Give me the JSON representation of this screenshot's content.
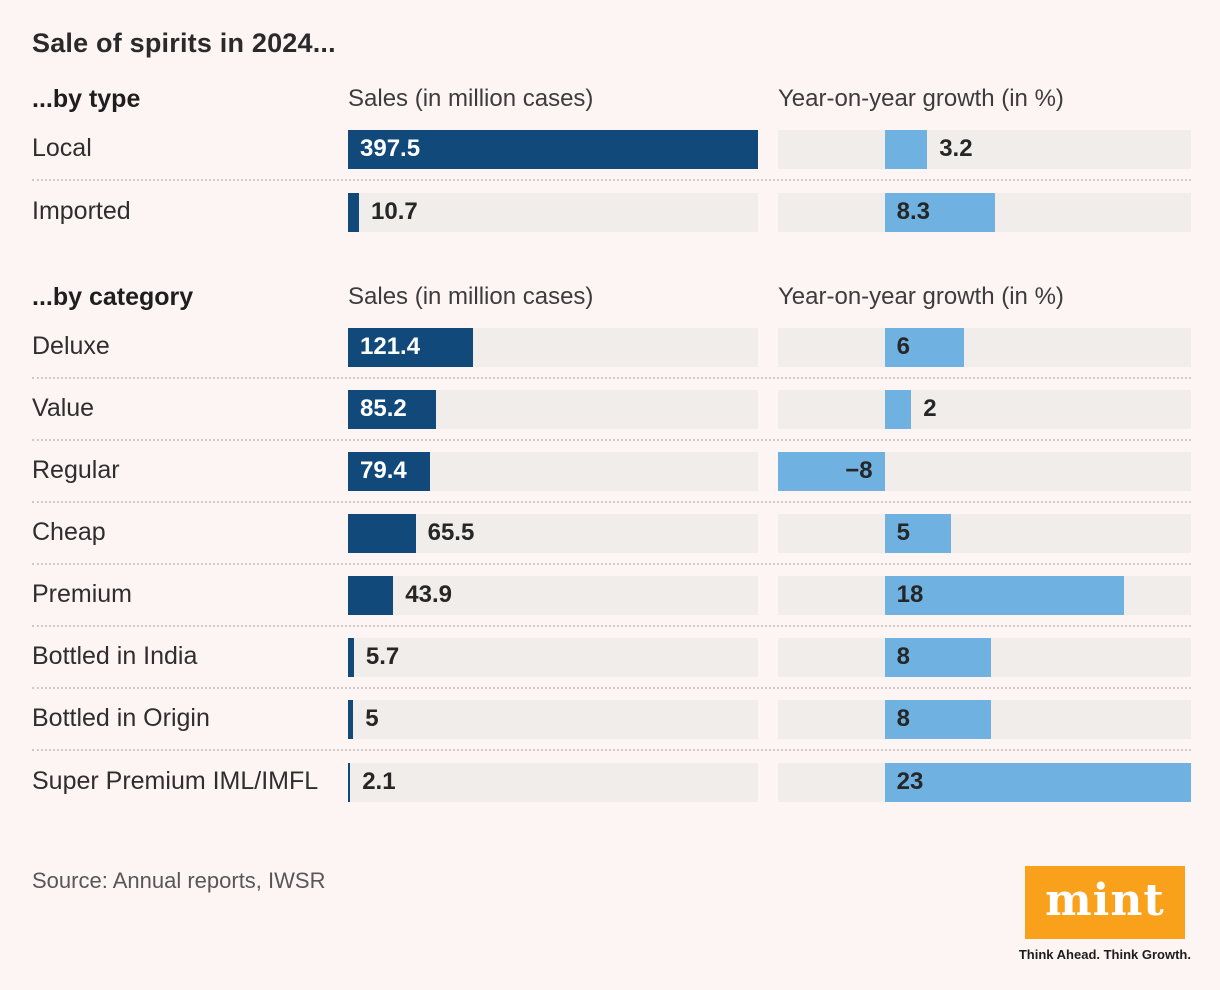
{
  "title": "Sale of spirits in 2024...",
  "source": "Source: Annual reports, IWSR",
  "logo": {
    "text": "mint",
    "tagline": "Think Ahead. Think Growth."
  },
  "colors": {
    "background": "#FDF5F3",
    "navy_bar": "#11497B",
    "light_blue_bar": "#6FB1E1",
    "bar_track": "#F0EDEB",
    "logo_orange": "#F9A11B",
    "value_on_navy": "#FFFFFF",
    "value_dark": "#262626",
    "separator": "#CDCAC8"
  },
  "chart_data": [
    {
      "type": "bar",
      "orientation": "horizontal",
      "title": "...by type",
      "categories": [
        "Local",
        "Imported"
      ],
      "series": [
        {
          "name": "Sales (in million cases)",
          "values": [
            397.5,
            10.7
          ],
          "labels": [
            "397.5",
            "10.7"
          ],
          "xlim": [
            0,
            397.5
          ],
          "color": "#11497B"
        },
        {
          "name": "Year-on-year growth (in %)",
          "values": [
            3.2,
            8.3
          ],
          "labels": [
            "3.2",
            "8.3"
          ],
          "xlim": [
            -8,
            23
          ],
          "color": "#6FB1E1"
        }
      ],
      "grid": false,
      "legend_position": "column-headers"
    },
    {
      "type": "bar",
      "orientation": "horizontal",
      "title": "...by category",
      "categories": [
        "Deluxe",
        "Value",
        "Regular",
        "Cheap",
        "Premium",
        "Bottled in India",
        "Bottled in Origin",
        "Super Premium IML/IMFL"
      ],
      "series": [
        {
          "name": "Sales (in million cases)",
          "values": [
            121.4,
            85.2,
            79.4,
            65.5,
            43.9,
            5.7,
            5,
            2.1
          ],
          "labels": [
            "121.4",
            "85.2",
            "79.4",
            "65.5",
            "43.9",
            "5.7",
            "5",
            "2.1"
          ],
          "xlim": [
            0,
            397.5
          ],
          "color": "#11497B"
        },
        {
          "name": "Year-on-year growth (in %)",
          "values": [
            6,
            2,
            -8,
            5,
            18,
            8,
            8,
            23
          ],
          "labels": [
            "6",
            "2",
            "−8",
            "5",
            "18",
            "8",
            "8",
            "23"
          ],
          "xlim": [
            -8,
            23
          ],
          "color": "#6FB1E1"
        }
      ],
      "grid": false,
      "legend_position": "column-headers"
    }
  ]
}
